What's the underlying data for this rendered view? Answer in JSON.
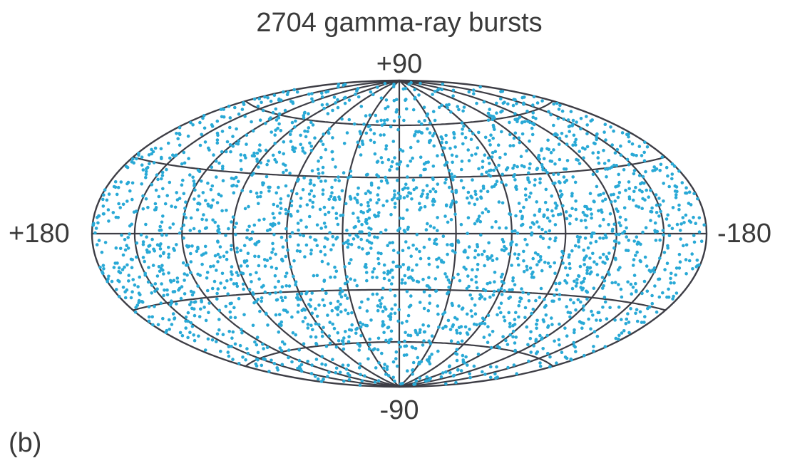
{
  "chart_data": {
    "type": "scatter",
    "projection": "Aitoff/Hammer all-sky (ellipse)",
    "title": "2704 gamma-ray bursts",
    "panel_label": "(b)",
    "labels": {
      "top": "+90",
      "bottom": "-90",
      "left": "+180",
      "right": "-180"
    },
    "lon_range": [
      180,
      -180
    ],
    "lat_range": [
      -90,
      90
    ],
    "point_count": 2704,
    "distribution": "isotropic (uniform over the sphere)",
    "grid": true,
    "meridian_step_deg": 30,
    "parallel_step_deg": 30,
    "point_color": "#29a9d6",
    "grid_color": "#3d3d45"
  }
}
